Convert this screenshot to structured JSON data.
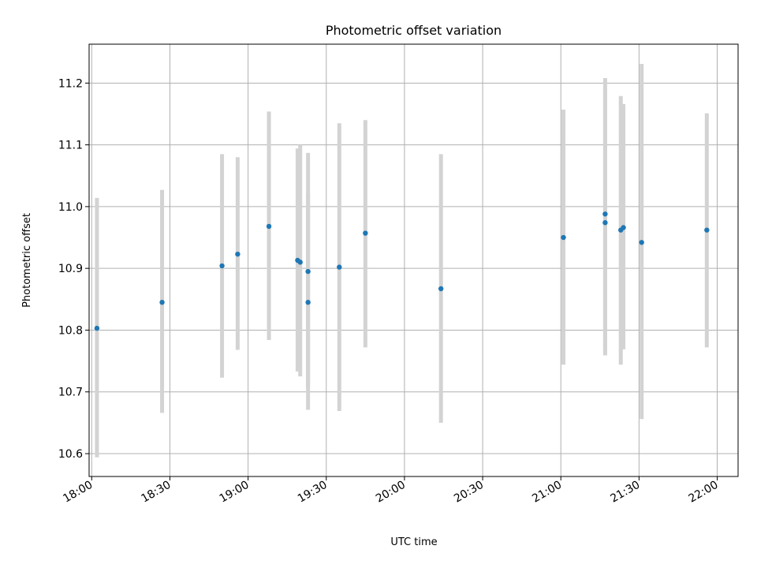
{
  "chart_data": {
    "type": "scatter",
    "title": "Photometric offset variation",
    "xlabel": "UTC time",
    "ylabel": "Photometric offset",
    "x_ticks": [
      "18:00",
      "18:30",
      "19:00",
      "19:30",
      "20:00",
      "20:30",
      "21:00",
      "21:30",
      "22:00"
    ],
    "y_ticks": [
      "10.6",
      "10.7",
      "10.8",
      "10.9",
      "11.0",
      "11.1",
      "11.2"
    ],
    "xlim": [
      "17:59",
      "22:08"
    ],
    "ylim": [
      10.563,
      11.263
    ],
    "grid": true,
    "colors": {
      "points": "#1f77b4",
      "errorbars": "#d3d3d3",
      "grid": "#b0b0b0"
    },
    "series": [
      {
        "time": [
          "18:02",
          "18:27",
          "18:50",
          "18:56",
          "19:08",
          "19:19",
          "19:20",
          "19:23",
          "19:23",
          "19:35",
          "19:45",
          "20:14",
          "21:01",
          "21:17",
          "21:17",
          "21:23",
          "21:24",
          "21:31",
          "21:56"
        ],
        "offset": [
          10.803,
          10.845,
          10.904,
          10.923,
          10.968,
          10.913,
          10.91,
          10.895,
          10.845,
          10.902,
          10.957,
          10.867,
          10.95,
          10.988,
          10.974,
          10.962,
          10.966,
          10.942,
          10.962
        ],
        "lower": [
          10.594,
          10.666,
          10.723,
          10.768,
          10.784,
          10.733,
          10.725,
          10.671,
          10.707,
          10.669,
          10.772,
          10.65,
          10.744,
          10.768,
          10.759,
          10.744,
          10.769,
          10.656,
          10.772
        ],
        "upper": [
          11.014,
          11.027,
          11.085,
          11.08,
          11.154,
          11.094,
          11.1,
          11.022,
          11.087,
          11.135,
          11.14,
          11.085,
          11.157,
          11.208,
          11.192,
          11.179,
          11.166,
          11.231,
          11.151
        ]
      }
    ]
  }
}
